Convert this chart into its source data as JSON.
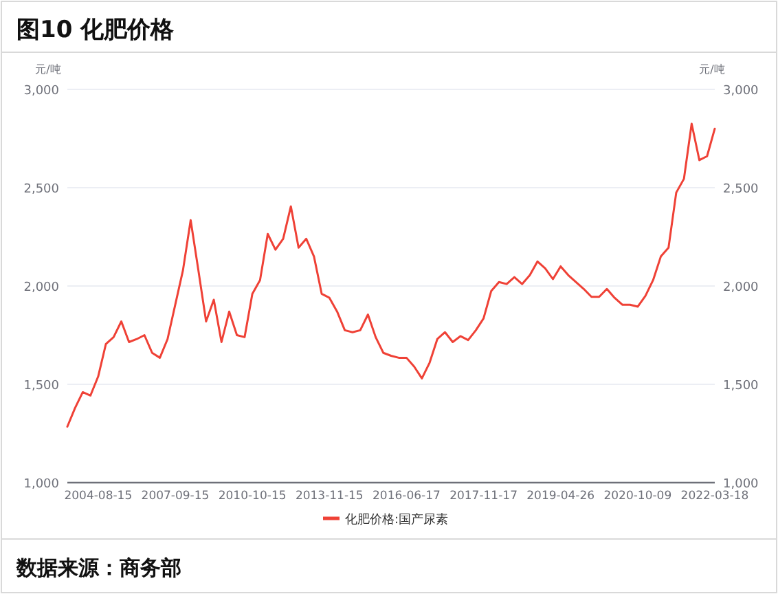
{
  "chart_data": {
    "type": "line",
    "title": "图10  化肥价格",
    "ylabel": "元/吨",
    "y2label": "元/吨",
    "annotations": [
      "数据来源：商务部"
    ],
    "categories": [
      null,
      null,
      null,
      null,
      "2004-08-15",
      null,
      null,
      null,
      null,
      null,
      null,
      null,
      null,
      null,
      "2007-09-15",
      null,
      null,
      null,
      null,
      null,
      null,
      null,
      null,
      null,
      "2010-10-15",
      null,
      null,
      null,
      null,
      null,
      null,
      null,
      null,
      null,
      "2013-11-15",
      null,
      null,
      null,
      null,
      null,
      null,
      null,
      null,
      null,
      "2016-06-17",
      null,
      null,
      null,
      null,
      null,
      null,
      null,
      null,
      null,
      "2017-11-17",
      null,
      null,
      null,
      null,
      null,
      null,
      null,
      null,
      null,
      "2019-04-26",
      null,
      null,
      null,
      null,
      null,
      null,
      null,
      null,
      null,
      "2020-10-09",
      null,
      null,
      null,
      null,
      null,
      null,
      null,
      null,
      null,
      "2022-03-18"
    ],
    "series": [
      {
        "name": "化肥价格:国产尿素",
        "color": "#ef4136",
        "values": [
          1285,
          1380,
          1460,
          1443,
          1540,
          1705,
          1740,
          1820,
          1715,
          1730,
          1750,
          1660,
          1635,
          1730,
          1905,
          2080,
          2335,
          2080,
          1820,
          1930,
          1715,
          1870,
          1750,
          1740,
          1960,
          2030,
          2265,
          2185,
          2240,
          2405,
          2195,
          2240,
          2150,
          1960,
          1940,
          1870,
          1775,
          1765,
          1775,
          1855,
          1740,
          1660,
          1645,
          1635,
          1635,
          1590,
          1530,
          1610,
          1730,
          1765,
          1715,
          1745,
          1725,
          1775,
          1835,
          1975,
          2020,
          2010,
          2045,
          2010,
          2055,
          2125,
          2090,
          2035,
          2100,
          2055,
          2020,
          1985,
          1945,
          1945,
          1985,
          1940,
          1905,
          1905,
          1895,
          1950,
          2030,
          2150,
          2195,
          2475,
          2545,
          2825,
          2640,
          2660,
          2800
        ]
      }
    ],
    "ylim": [
      1000,
      3000
    ],
    "yticks": [
      {
        "value": 1000,
        "label": "1,000"
      },
      {
        "value": 1500,
        "label": "1,500"
      },
      {
        "value": 2000,
        "label": "2,000"
      },
      {
        "value": 2500,
        "label": "2,500"
      },
      {
        "value": 3000,
        "label": "3,000"
      }
    ],
    "y2lim": [
      1000,
      3000
    ],
    "y2ticks": [
      {
        "value": 1000,
        "label": "1,000"
      },
      {
        "value": 1500,
        "label": "1,500"
      },
      {
        "value": 2000,
        "label": "2,000"
      },
      {
        "value": 2500,
        "label": "2,500"
      },
      {
        "value": 3000,
        "label": "3,000"
      }
    ],
    "grid": "y",
    "legend": "bottom",
    "marker": "none",
    "line_style": "solid"
  }
}
